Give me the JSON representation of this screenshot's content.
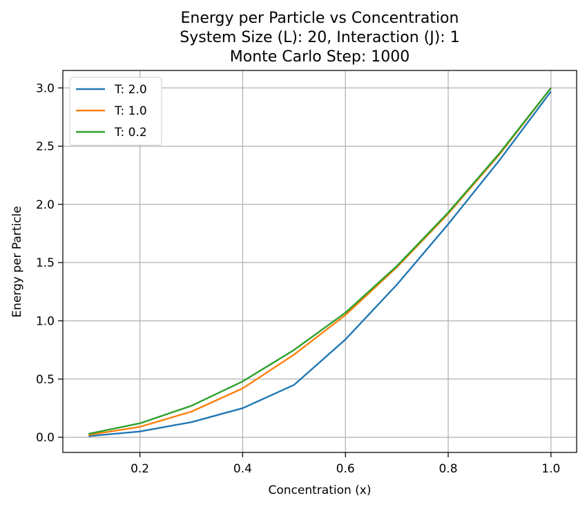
{
  "chart_data": {
    "type": "line",
    "title_lines": [
      "Energy per Particle vs Concentration",
      "System Size (L): 20, Interaction (J): 1",
      "Monte Carlo Step: 1000"
    ],
    "xlabel": "Concentration (x)",
    "ylabel": "Energy per Particle",
    "xlim": [
      0.05,
      1.05
    ],
    "ylim": [
      -0.13,
      3.15
    ],
    "x_ticks": [
      0.2,
      0.4,
      0.6,
      0.8,
      1.0
    ],
    "x_tick_labels": [
      "0.2",
      "0.4",
      "0.6",
      "0.8",
      "1.0"
    ],
    "y_ticks": [
      0.0,
      0.5,
      1.0,
      1.5,
      2.0,
      2.5,
      3.0
    ],
    "y_tick_labels": [
      "0.0",
      "0.5",
      "1.0",
      "1.5",
      "2.0",
      "2.5",
      "3.0"
    ],
    "grid": true,
    "legend_position": "upper-left",
    "x": [
      0.1,
      0.2,
      0.3,
      0.4,
      0.5,
      0.6,
      0.7,
      0.8,
      0.9,
      1.0
    ],
    "series": [
      {
        "name": "T: 2.0",
        "color": "#1f77b4",
        "values": [
          0.01,
          0.05,
          0.13,
          0.25,
          0.45,
          0.84,
          1.31,
          1.83,
          2.38,
          2.97
        ]
      },
      {
        "name": "T: 1.0",
        "color": "#ff7f0e",
        "values": [
          0.02,
          0.09,
          0.22,
          0.42,
          0.71,
          1.05,
          1.46,
          1.92,
          2.43,
          3.0
        ]
      },
      {
        "name": "T: 0.2",
        "color": "#2ca02c",
        "values": [
          0.03,
          0.12,
          0.27,
          0.48,
          0.75,
          1.07,
          1.47,
          1.93,
          2.44,
          3.0
        ]
      }
    ]
  }
}
